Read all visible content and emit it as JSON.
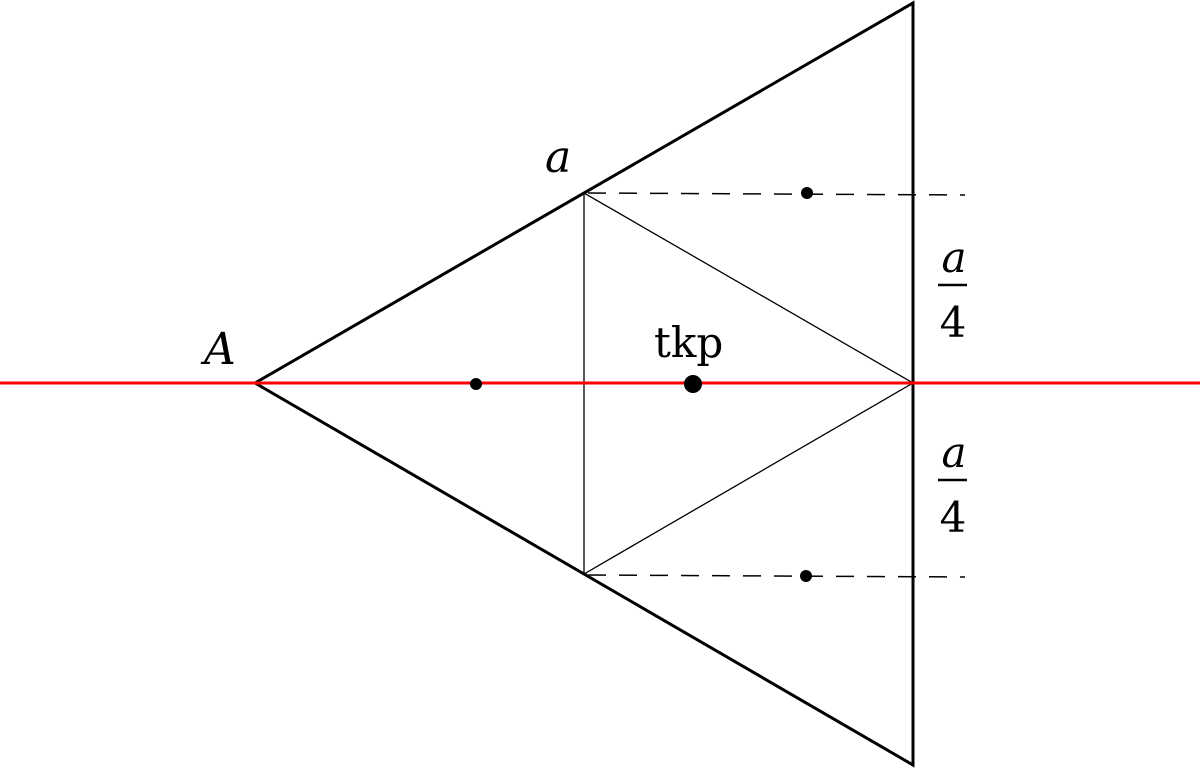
{
  "labels": {
    "vertex_A": "A",
    "side_a": "a",
    "centroid": "tkp",
    "upper_fraction": {
      "numerator": "a",
      "denominator": "4"
    },
    "lower_fraction": {
      "numerator": "a",
      "denominator": "4"
    }
  },
  "colors": {
    "axis_line": "#ff0000",
    "stroke": "#000000"
  }
}
